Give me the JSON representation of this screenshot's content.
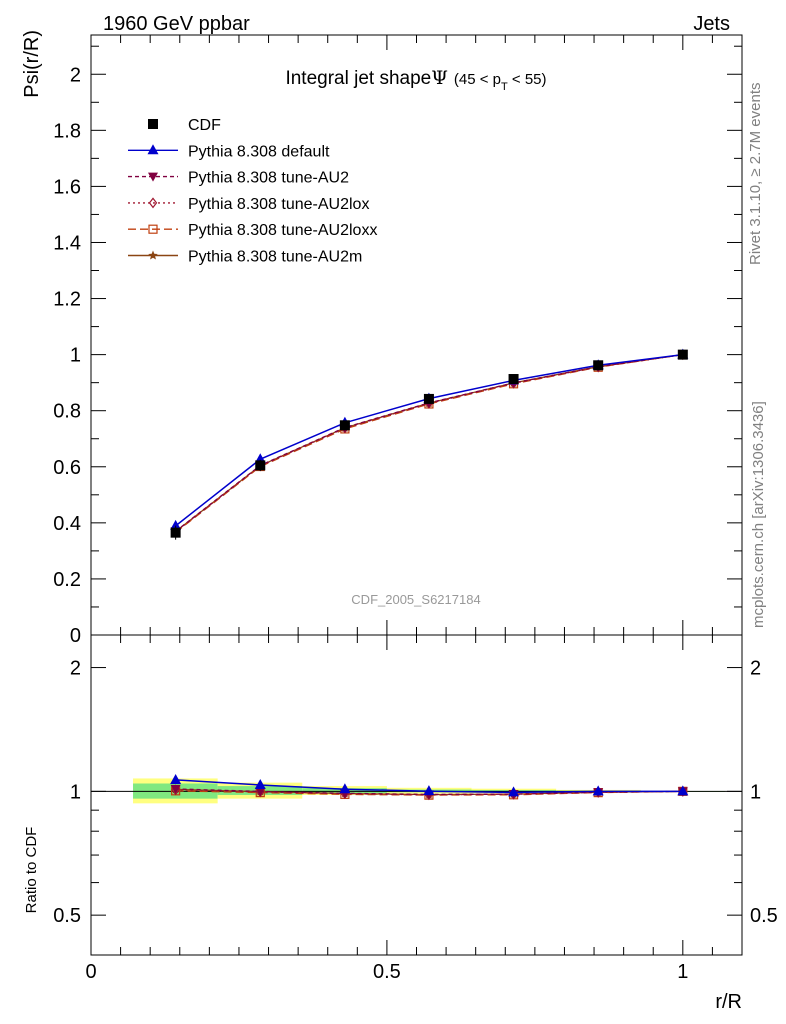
{
  "header": {
    "left": "1960 GeV ppbar",
    "right": "Jets"
  },
  "side_text": {
    "rivet": "Rivet 3.1.10, ≥ 2.7M events",
    "mcplots": "mcplots.cern.ch [arXiv:1306.3436]"
  },
  "watermark": "CDF_2005_S6217184",
  "colors": {
    "cdf": "#000000",
    "default": "#0000cc",
    "au2": "#800040",
    "au2lox": "#a01830",
    "au2loxx": "#c04010",
    "au2m": "#8b4513",
    "band_inner": "#80e880",
    "band_outer": "#ffff80"
  },
  "chart_data": [
    {
      "type": "line",
      "title": "Integral jet shapeΨ (45 < p_T < 55)",
      "title_main": "Integral jet shape",
      "title_psi": "Ψ",
      "title_range_a": "(45 < p",
      "title_sub": "T",
      "title_range_b": " < 55)",
      "ylabel": "Psi(r/R)",
      "xlabel": "",
      "xlim": [
        0,
        1.1
      ],
      "ylim": [
        0,
        2.14
      ],
      "yticks": [
        "0",
        "0.2",
        "0.4",
        "0.6",
        "0.8",
        "1",
        "1.2",
        "1.4",
        "1.6",
        "1.8",
        "2"
      ],
      "legend_position": "top-left",
      "x": [
        0.143,
        0.286,
        0.429,
        0.571,
        0.714,
        0.857,
        1.0
      ],
      "series": [
        {
          "name": "CDF",
          "marker": "square",
          "values": [
            0.365,
            0.605,
            0.748,
            0.842,
            0.913,
            0.962,
            1.0
          ],
          "errors": [
            0.025,
            0.02,
            0.015,
            0.01,
            0.008,
            0.005,
            0.0
          ]
        },
        {
          "name": "Pythia 8.308 default",
          "marker": "triangle-up",
          "values": [
            0.389,
            0.627,
            0.757,
            0.843,
            0.908,
            0.962,
            1.0
          ]
        },
        {
          "name": "Pythia 8.308 tune-AU2",
          "marker": "triangle-down",
          "values": [
            0.37,
            0.605,
            0.74,
            0.828,
            0.899,
            0.957,
            1.0
          ]
        },
        {
          "name": "Pythia 8.308 tune-AU2lox",
          "marker": "diamond",
          "values": [
            0.368,
            0.603,
            0.738,
            0.826,
            0.898,
            0.956,
            1.0
          ]
        },
        {
          "name": "Pythia 8.308 tune-AU2loxx",
          "marker": "square-open",
          "values": [
            0.366,
            0.601,
            0.735,
            0.824,
            0.896,
            0.955,
            1.0
          ]
        },
        {
          "name": "Pythia 8.308 tune-AU2m",
          "marker": "star",
          "values": [
            0.369,
            0.604,
            0.739,
            0.827,
            0.899,
            0.957,
            1.0
          ]
        }
      ]
    },
    {
      "type": "line",
      "ylabel": "Ratio to CDF",
      "xlabel": "r/R",
      "xlim": [
        0,
        1.1
      ],
      "ylim": [
        0.4,
        2.4
      ],
      "y_scale": "log",
      "yticks": [
        "0.5",
        "1",
        "2"
      ],
      "xticks": [
        "0",
        "0.5",
        "1"
      ],
      "x": [
        0.143,
        0.286,
        0.429,
        0.571,
        0.714,
        0.857,
        1.0
      ],
      "bins": [
        [
          0.071,
          0.214
        ],
        [
          0.214,
          0.357
        ],
        [
          0.357,
          0.5
        ],
        [
          0.5,
          0.643
        ],
        [
          0.643,
          0.786
        ],
        [
          0.786,
          0.929
        ],
        [
          0.929,
          1.071
        ]
      ],
      "band_inner": [
        [
          0.96,
          1.045
        ],
        [
          0.98,
          1.03
        ],
        [
          0.99,
          1.018
        ],
        [
          0.995,
          1.01
        ],
        [
          0.996,
          1.007
        ],
        [
          0.997,
          1.004
        ],
        [
          1.0,
          1.0
        ]
      ],
      "band_outer": [
        [
          0.935,
          1.075
        ],
        [
          0.96,
          1.05
        ],
        [
          0.98,
          1.03
        ],
        [
          0.988,
          1.02
        ],
        [
          0.99,
          1.015
        ],
        [
          0.994,
          1.008
        ],
        [
          1.0,
          1.0
        ]
      ],
      "series": [
        {
          "name": "Pythia 8.308 default",
          "values": [
            1.066,
            1.036,
            1.012,
            1.001,
            0.994,
            1.0,
            1.0
          ]
        },
        {
          "name": "Pythia 8.308 tune-AU2",
          "values": [
            1.014,
            1.0,
            0.989,
            0.983,
            0.985,
            0.995,
            1.0
          ]
        },
        {
          "name": "Pythia 8.308 tune-AU2lox",
          "values": [
            1.008,
            0.997,
            0.987,
            0.981,
            0.984,
            0.994,
            1.0
          ]
        },
        {
          "name": "Pythia 8.308 tune-AU2loxx",
          "values": [
            1.003,
            0.993,
            0.983,
            0.979,
            0.981,
            0.993,
            1.0
          ]
        },
        {
          "name": "Pythia 8.308 tune-AU2m",
          "values": [
            1.011,
            0.998,
            0.988,
            0.982,
            0.985,
            0.995,
            1.0
          ]
        }
      ]
    }
  ]
}
